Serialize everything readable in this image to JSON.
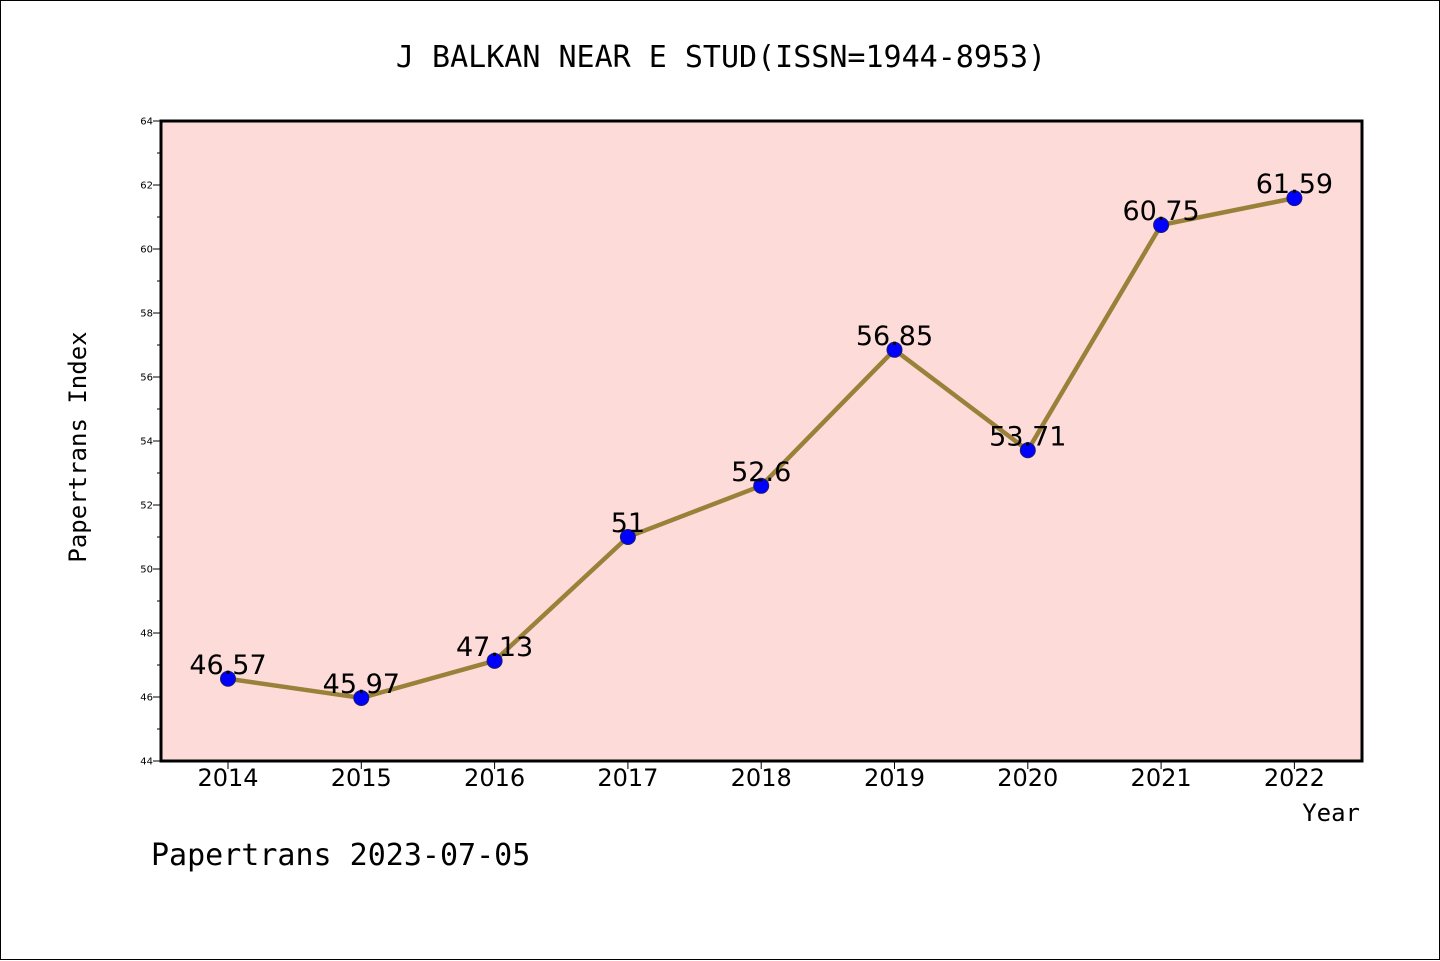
{
  "chart_data": {
    "type": "line",
    "title": "J BALKAN NEAR E STUD(ISSN=1944-8953)",
    "xlabel": "Year",
    "ylabel": "Papertrans Index",
    "categories": [
      "2014",
      "2015",
      "2016",
      "2017",
      "2018",
      "2019",
      "2020",
      "2021",
      "2022"
    ],
    "series": [
      {
        "values": [
          46.57,
          45.97,
          47.13,
          51,
          52.6,
          56.85,
          53.71,
          60.75,
          61.59
        ],
        "data_labels": [
          "46.57",
          "45.97",
          "47.13",
          "51",
          "52.6",
          "56.85",
          "53.71",
          "60.75",
          "61.59"
        ]
      }
    ],
    "ylim": [
      44,
      64
    ],
    "y_ticks": [
      "44",
      "46",
      "48",
      "50",
      "52",
      "54",
      "56",
      "58",
      "60",
      "62",
      "64"
    ],
    "grid": false,
    "legend": "none",
    "footer": "Papertrans 2023-07-05",
    "colors": {
      "plot_background": "#fddbd9",
      "line": "#9a8139",
      "marker": "#0000ff",
      "marker_edge": "#1c1c6e"
    }
  }
}
